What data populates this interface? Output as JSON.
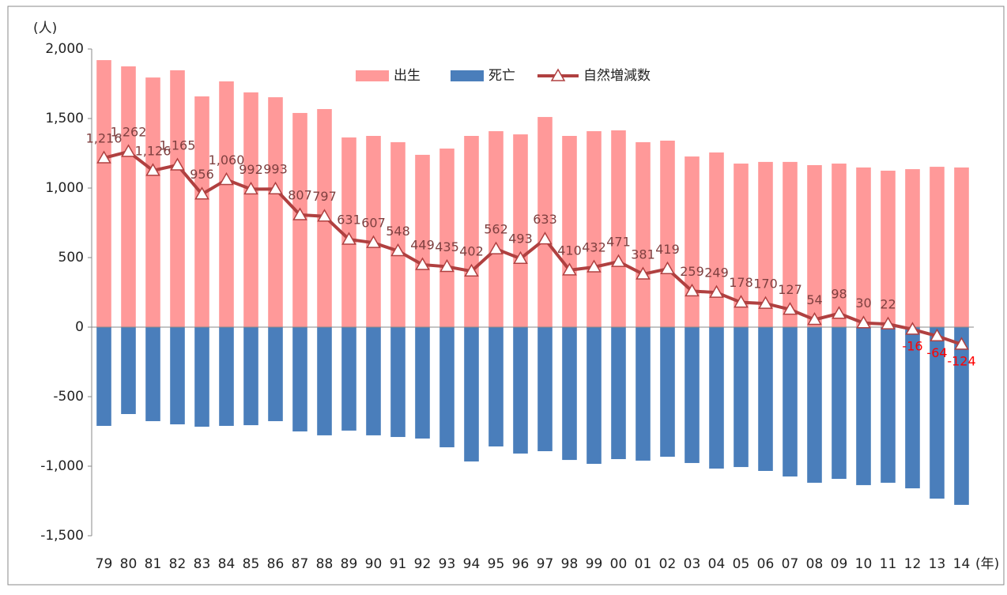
{
  "chart_data": {
    "type": "bar-line",
    "y_unit": "(人)",
    "x_unit": "(年)",
    "categories": [
      "79",
      "80",
      "81",
      "82",
      "83",
      "84",
      "85",
      "86",
      "87",
      "88",
      "89",
      "90",
      "91",
      "92",
      "93",
      "94",
      "95",
      "96",
      "97",
      "98",
      "99",
      "00",
      "01",
      "02",
      "03",
      "04",
      "05",
      "06",
      "07",
      "08",
      "09",
      "10",
      "11",
      "12",
      "13",
      "14"
    ],
    "series": [
      {
        "name": "出生",
        "color": "#ff9999",
        "kind": "bar",
        "values": [
          1920,
          1875,
          1795,
          1847,
          1659,
          1767,
          1688,
          1653,
          1540,
          1568,
          1364,
          1375,
          1330,
          1239,
          1284,
          1375,
          1409,
          1386,
          1511,
          1375,
          1409,
          1415,
          1330,
          1341,
          1227,
          1256,
          1176,
          1188,
          1188,
          1165,
          1176,
          1148,
          1125,
          1136,
          1153,
          1148
        ]
      },
      {
        "name": "死亡",
        "color": "#4a7ebb",
        "kind": "bar",
        "values": [
          -710,
          -625,
          -676,
          -699,
          -716,
          -710,
          -705,
          -676,
          -750,
          -778,
          -744,
          -778,
          -790,
          -801,
          -864,
          -966,
          -858,
          -909,
          -892,
          -955,
          -983,
          -949,
          -960,
          -932,
          -977,
          -1017,
          -1006,
          -1034,
          -1074,
          -1119,
          -1091,
          -1136,
          -1119,
          -1159,
          -1233,
          -1278
        ]
      },
      {
        "name": "自然増減数",
        "color": "#b04040",
        "kind": "line",
        "label_color": "#7f4040",
        "negative_label_color": "#ff0000",
        "values": [
          1216,
          1262,
          1126,
          1165,
          956,
          1060,
          992,
          993,
          807,
          797,
          631,
          607,
          548,
          449,
          435,
          402,
          562,
          493,
          633,
          410,
          432,
          471,
          381,
          419,
          259,
          249,
          178,
          170,
          127,
          54,
          98,
          30,
          22,
          -16,
          -64,
          -124
        ],
        "value_labels": [
          "1,216",
          "1,262",
          "1,126",
          "1,165",
          "956",
          "1,060",
          "992",
          "993",
          "807",
          "797",
          "631",
          "607",
          "548",
          "449",
          "435",
          "402",
          "562",
          "493",
          "633",
          "410",
          "432",
          "471",
          "381",
          "419",
          "259",
          "249",
          "178",
          "170",
          "127",
          "54",
          "98",
          "30",
          "22",
          "-16",
          "-64",
          "-124"
        ]
      }
    ],
    "ylim": [
      -1500,
      2000
    ],
    "yticks": [
      {
        "value": -1500,
        "label": "-1,500"
      },
      {
        "value": -1000,
        "label": "-1,000"
      },
      -500,
      0,
      500,
      {
        "value": 1000,
        "label": "1,000"
      },
      {
        "value": 1500,
        "label": "1,500"
      },
      {
        "value": 2000,
        "label": "2,000"
      }
    ],
    "legend": "top"
  }
}
